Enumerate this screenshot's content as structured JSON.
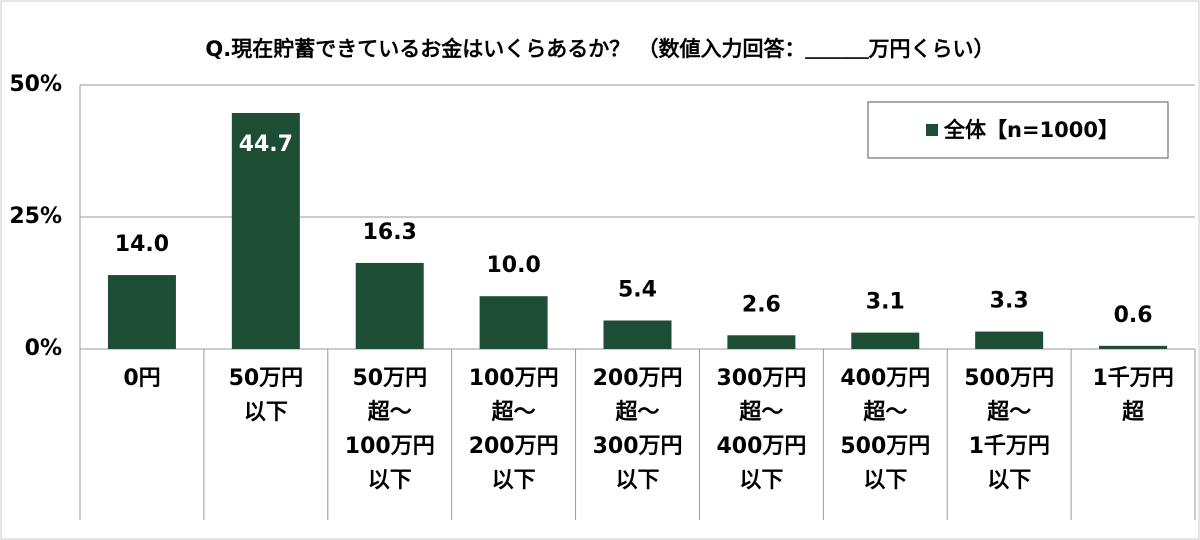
{
  "chart_data": {
    "type": "bar",
    "title": "Q.現在貯蓄できているお金はいくらあるか？ （数値入力回答：＿＿＿万円くらい）",
    "categories": [
      "0円",
      "50万円\n以下",
      "50万円\n超～\n100万円\n以下",
      "100万円\n超～\n200万円\n以下",
      "200万円\n超～\n300万円\n以下",
      "300万円\n超～\n400万円\n以下",
      "400万円\n超～\n500万円\n以下",
      "500万円\n超～\n1千万円\n以下",
      "1千万円\n超"
    ],
    "series": [
      {
        "name": "全体【n=1000】",
        "color": "#1e4d36",
        "values": [
          14.0,
          44.7,
          16.3,
          10.0,
          5.4,
          2.6,
          3.1,
          3.3,
          0.6
        ],
        "value_labels": [
          "14.0",
          "44.7",
          "16.3",
          "10.0",
          "5.4",
          "2.6",
          "3.1",
          "3.3",
          "0.6"
        ]
      }
    ],
    "ylim": [
      0,
      50
    ],
    "yticks": [
      {
        "value": 0,
        "label": "0%"
      },
      {
        "value": 25,
        "label": "25%"
      },
      {
        "value": 50,
        "label": "50%"
      }
    ],
    "grid": true,
    "legend": "top-right"
  }
}
